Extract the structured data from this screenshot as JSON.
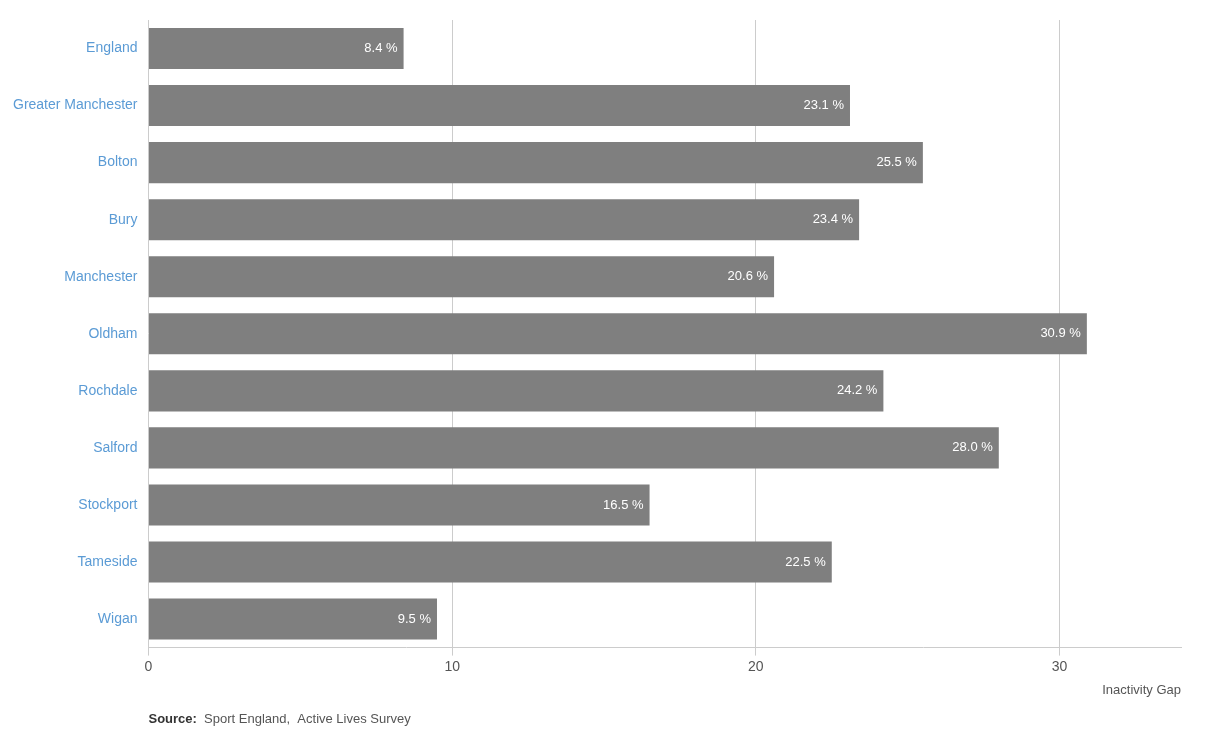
{
  "chart_data": {
    "type": "bar",
    "orientation": "horizontal",
    "categories": [
      "England",
      "Greater Manchester",
      "Bolton",
      "Bury",
      "Manchester",
      "Oldham",
      "Rochdale",
      "Salford",
      "Stockport",
      "Tameside",
      "Wigan"
    ],
    "values": [
      8.4,
      23.1,
      25.5,
      23.4,
      20.6,
      30.9,
      24.2,
      28.0,
      16.5,
      22.5,
      9.5
    ],
    "value_labels": [
      "8.4 %",
      "23.1 %",
      "25.5 %",
      "23.4 %",
      "20.6 %",
      "30.9 %",
      "24.2 %",
      "28.0 %",
      "16.5 %",
      "22.5 %",
      "9.5 %"
    ],
    "data_labels": true,
    "color": "#7f7f7f",
    "xlabel": "Inactivity Gap",
    "xlim": [
      0,
      34
    ],
    "xticks": [
      0,
      10,
      20,
      30
    ],
    "grid": true,
    "annotations": [
      "Source:",
      "  Sport England,  Active Lives Survey"
    ]
  }
}
